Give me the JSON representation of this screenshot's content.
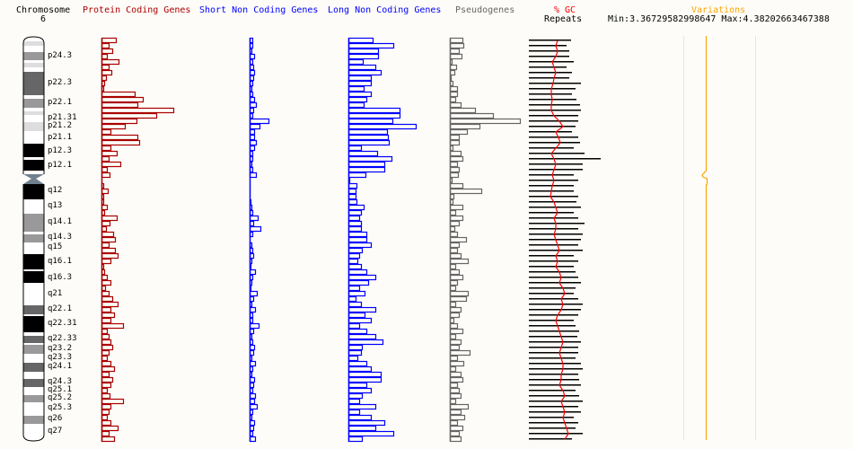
{
  "header": {
    "chromosome_label": "Chromosome",
    "chromosome_number": "6",
    "protein_coding": "Protein Coding Genes",
    "short_non_coding": "Short Non Coding Genes",
    "long_non_coding": "Long Non Coding Genes",
    "pseudogenes": "Pseudogenes",
    "gc": "% GC",
    "repeats": "Repeats",
    "variations": "Variations",
    "min_max": "Min:3.36729582998647 Max:4.38202663467388"
  },
  "colors": {
    "protein": "#aa0000",
    "short": "#0000ff",
    "long": "#0000ff",
    "pseudo": "#666666",
    "repeats": "#000000",
    "gc": "#ff0000",
    "variations": "#ffa500"
  },
  "bands": [
    {
      "name": "p24.3",
      "stain": "#999999"
    },
    {
      "name": "p22.3",
      "stain": "#666666"
    },
    {
      "name": "p22.1",
      "stain": "#999999"
    },
    {
      "name": "p21.31",
      "stain": "#ffffff"
    },
    {
      "name": "p21.2",
      "stain": "#dddddd"
    },
    {
      "name": "p21.1",
      "stain": "#ffffff"
    },
    {
      "name": "p12.3",
      "stain": "#000000"
    },
    {
      "name": "p12.1",
      "stain": "#000000"
    },
    {
      "name": "q12",
      "stain": "#000000"
    },
    {
      "name": "q13",
      "stain": "#ffffff"
    },
    {
      "name": "q14.1",
      "stain": "#999999"
    },
    {
      "name": "q14.3",
      "stain": "#999999"
    },
    {
      "name": "q15",
      "stain": "#ffffff"
    },
    {
      "name": "q16.1",
      "stain": "#000000"
    },
    {
      "name": "q16.3",
      "stain": "#000000"
    },
    {
      "name": "q21",
      "stain": "#ffffff"
    },
    {
      "name": "q22.1",
      "stain": "#666666"
    },
    {
      "name": "q22.31",
      "stain": "#000000"
    },
    {
      "name": "q22.33",
      "stain": "#666666"
    },
    {
      "name": "q23.2",
      "stain": "#999999"
    },
    {
      "name": "q23.3",
      "stain": "#ffffff"
    },
    {
      "name": "q24.1",
      "stain": "#666666"
    },
    {
      "name": "q24.3",
      "stain": "#666666"
    },
    {
      "name": "q25.1",
      "stain": "#ffffff"
    },
    {
      "name": "q25.2",
      "stain": "#999999"
    },
    {
      "name": "q25.3",
      "stain": "#ffffff"
    },
    {
      "name": "q26",
      "stain": "#999999"
    },
    {
      "name": "q27",
      "stain": "#ffffff"
    }
  ],
  "tracks": {
    "protein": [
      16,
      8,
      12,
      6,
      19,
      8,
      11,
      5,
      3,
      2,
      37,
      46,
      40,
      80,
      61,
      39,
      26,
      10,
      40,
      42,
      10,
      17,
      8,
      21,
      6,
      9,
      0,
      2,
      7,
      2,
      2,
      6,
      3,
      17,
      9,
      5,
      13,
      15,
      8,
      15,
      18,
      10,
      2,
      3,
      6,
      10,
      4,
      8,
      12,
      18,
      10,
      14,
      10,
      24,
      6,
      8,
      10,
      12,
      8,
      6,
      10,
      14,
      8,
      12,
      10,
      6,
      9,
      24,
      10,
      8,
      6,
      10,
      18,
      8,
      14
    ],
    "short": [
      3,
      3,
      2,
      5,
      3,
      4,
      5,
      4,
      3,
      2,
      3,
      5,
      7,
      4,
      3,
      21,
      11,
      5,
      5,
      7,
      5,
      3,
      3,
      2,
      3,
      7,
      0,
      0,
      0,
      0,
      1,
      2,
      3,
      9,
      4,
      12,
      3,
      0,
      2,
      3,
      4,
      2,
      1,
      6,
      3,
      2,
      1,
      8,
      4,
      2,
      6,
      3,
      3,
      10,
      4,
      2,
      3,
      5,
      4,
      2,
      6,
      3,
      2,
      5,
      4,
      3,
      6,
      5,
      8,
      3,
      2,
      5,
      4,
      3,
      6
    ],
    "long": [
      27,
      50,
      33,
      33,
      16,
      30,
      36,
      25,
      25,
      17,
      25,
      20,
      17,
      57,
      57,
      49,
      75,
      43,
      44,
      45,
      14,
      32,
      48,
      40,
      40,
      19,
      1,
      9,
      8,
      8,
      9,
      17,
      14,
      12,
      14,
      14,
      20,
      20,
      25,
      15,
      12,
      10,
      14,
      20,
      30,
      22,
      12,
      18,
      8,
      14,
      30,
      18,
      25,
      12,
      20,
      30,
      38,
      15,
      14,
      10,
      20,
      25,
      36,
      36,
      20,
      25,
      15,
      12,
      30,
      12,
      25,
      40,
      30,
      50,
      15
    ],
    "pseudo": [
      14,
      15,
      10,
      13,
      2,
      7,
      5,
      1,
      3,
      8,
      8,
      6,
      12,
      28,
      48,
      78,
      33,
      19,
      10,
      10,
      3,
      12,
      14,
      8,
      10,
      9,
      2,
      14,
      35,
      4,
      3,
      14,
      6,
      14,
      10,
      5,
      8,
      18,
      10,
      8,
      12,
      20,
      6,
      10,
      14,
      8,
      6,
      20,
      18,
      6,
      12,
      10,
      4,
      8,
      14,
      6,
      12,
      10,
      22,
      8,
      15,
      6,
      12,
      14,
      8,
      10,
      12,
      6,
      20,
      12,
      16,
      8,
      14,
      10,
      12
    ],
    "repeats": [
      47,
      42,
      45,
      45,
      50,
      42,
      48,
      45,
      58,
      52,
      48,
      53,
      57,
      58,
      55,
      55,
      52,
      48,
      55,
      57,
      50,
      62,
      80,
      60,
      60,
      50,
      55,
      50,
      50,
      55,
      53,
      58,
      50,
      55,
      62,
      55,
      60,
      58,
      55,
      60,
      50,
      55,
      50,
      52,
      55,
      58,
      52,
      50,
      55,
      60,
      58,
      55,
      50,
      52,
      56,
      54,
      58,
      55,
      55,
      52,
      58,
      60,
      55,
      56,
      58,
      52,
      56,
      60,
      55,
      58,
      50,
      55,
      52,
      60,
      48
    ],
    "gc": [
      32,
      30,
      32,
      30,
      26,
      28,
      30,
      28,
      27,
      25,
      25,
      26,
      25,
      25,
      28,
      34,
      38,
      30,
      33,
      35,
      30,
      25,
      28,
      30,
      28,
      26,
      28,
      26,
      25,
      24,
      28,
      30,
      32,
      28,
      30,
      30,
      28,
      30,
      32,
      34,
      30,
      32,
      30,
      34,
      36,
      34,
      38,
      40,
      36,
      38,
      36,
      32,
      30,
      32,
      34,
      36,
      38,
      36,
      34,
      36,
      38,
      38,
      36,
      36,
      34,
      38,
      40,
      36,
      38,
      40,
      38,
      40,
      42,
      44,
      40
    ]
  }
}
